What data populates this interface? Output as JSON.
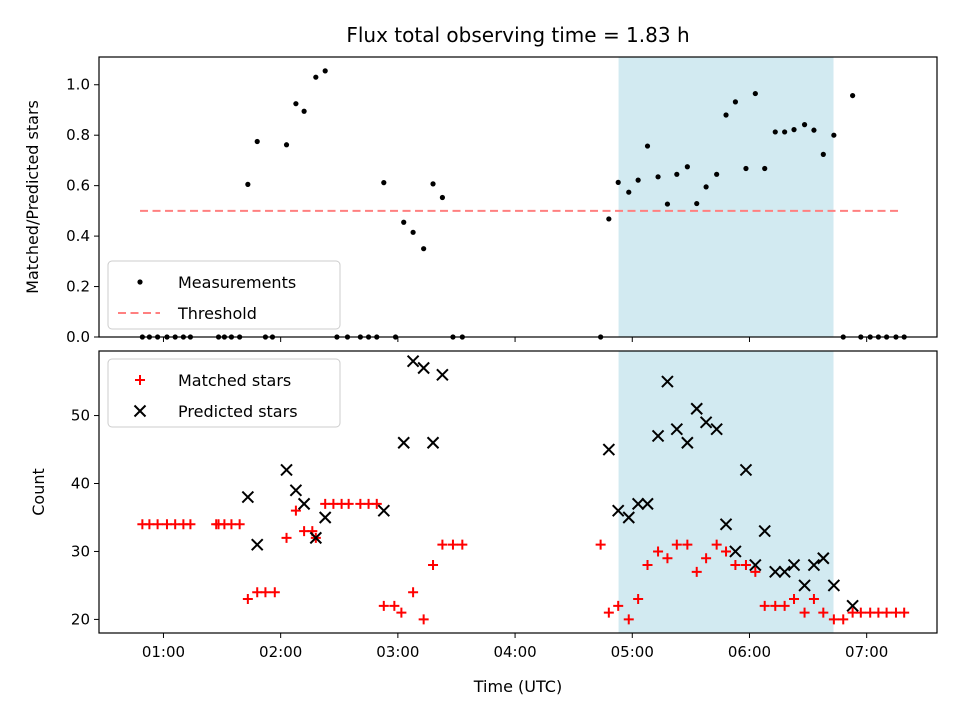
{
  "chart_data": {
    "title": "Flux total observing time = 1.83 h",
    "xlabel": "Time (UTC)",
    "x_tick_labels": [
      "01:00",
      "02:00",
      "03:00",
      "04:00",
      "05:00",
      "06:00",
      "07:00"
    ],
    "x_ticks_hours": [
      1,
      2,
      3,
      4,
      5,
      6,
      7
    ],
    "x_range_hours": [
      0.45,
      7.6
    ],
    "shaded_interval_hours": [
      4.883,
      6.717
    ],
    "shade_color": "#add8e6",
    "panels": [
      {
        "id": "ratio",
        "type": "scatter",
        "ylabel": "Matched/Predicted stars",
        "ylim": [
          0,
          1.11
        ],
        "y_ticks": [
          0.0,
          0.2,
          0.4,
          0.6,
          0.8,
          1.0
        ],
        "y_tick_labels": [
          "0.0",
          "0.2",
          "0.4",
          "0.6",
          "0.8",
          "1.0"
        ],
        "legend": {
          "placement": "lower-left",
          "entries": [
            "Measurements",
            "Threshold"
          ]
        },
        "series": [
          {
            "name": "Measurements",
            "marker": "dot",
            "color": "#000000",
            "points": [
              [
                0.82,
                0
              ],
              [
                0.88,
                0
              ],
              [
                0.95,
                0
              ],
              [
                1.03,
                0
              ],
              [
                1.1,
                0
              ],
              [
                1.17,
                0
              ],
              [
                1.23,
                0
              ],
              [
                1.47,
                0
              ],
              [
                1.52,
                0
              ],
              [
                1.58,
                0
              ],
              [
                1.65,
                0
              ],
              [
                1.72,
                0.605
              ],
              [
                1.8,
                0.775
              ],
              [
                1.87,
                0
              ],
              [
                1.93,
                0
              ],
              [
                2.05,
                0.762
              ],
              [
                2.13,
                0.925
              ],
              [
                2.2,
                0.895
              ],
              [
                2.3,
                1.03
              ],
              [
                2.38,
                1.055
              ],
              [
                2.48,
                0
              ],
              [
                2.57,
                0
              ],
              [
                2.68,
                0
              ],
              [
                2.75,
                0
              ],
              [
                2.82,
                0
              ],
              [
                2.88,
                0.612
              ],
              [
                2.98,
                0
              ],
              [
                3.05,
                0.455
              ],
              [
                3.13,
                0.415
              ],
              [
                3.22,
                0.35
              ],
              [
                3.3,
                0.607
              ],
              [
                3.38,
                0.553
              ],
              [
                3.47,
                0
              ],
              [
                3.55,
                0
              ],
              [
                4.73,
                0
              ],
              [
                4.8,
                0.468
              ],
              [
                4.88,
                0.613
              ],
              [
                4.97,
                0.574
              ],
              [
                5.05,
                0.622
              ],
              [
                5.13,
                0.757
              ],
              [
                5.22,
                0.635
              ],
              [
                5.3,
                0.527
              ],
              [
                5.38,
                0.645
              ],
              [
                5.47,
                0.675
              ],
              [
                5.55,
                0.529
              ],
              [
                5.63,
                0.595
              ],
              [
                5.72,
                0.645
              ],
              [
                5.8,
                0.88
              ],
              [
                5.88,
                0.932
              ],
              [
                5.97,
                0.668
              ],
              [
                6.05,
                0.965
              ],
              [
                6.13,
                0.668
              ],
              [
                6.22,
                0.813
              ],
              [
                6.3,
                0.813
              ],
              [
                6.38,
                0.822
              ],
              [
                6.47,
                0.842
              ],
              [
                6.55,
                0.82
              ],
              [
                6.63,
                0.724
              ],
              [
                6.72,
                0.8
              ],
              [
                6.8,
                0
              ],
              [
                6.88,
                0.957
              ],
              [
                6.95,
                0
              ],
              [
                7.03,
                0
              ],
              [
                7.1,
                0
              ],
              [
                7.17,
                0
              ],
              [
                7.25,
                0
              ],
              [
                7.32,
                0
              ]
            ]
          },
          {
            "name": "Threshold",
            "type": "line",
            "style": "dashed",
            "color": "#ff8080",
            "points": [
              [
                0.8,
                0.5
              ],
              [
                7.3,
                0.5
              ]
            ]
          }
        ]
      },
      {
        "id": "count",
        "type": "scatter",
        "ylabel": "Count",
        "ylim": [
          18,
          59.5
        ],
        "y_ticks": [
          20,
          30,
          40,
          50
        ],
        "y_tick_labels": [
          "20",
          "30",
          "40",
          "50"
        ],
        "legend": {
          "placement": "upper-left",
          "entries": [
            "Matched stars",
            "Predicted stars"
          ]
        },
        "series": [
          {
            "name": "Matched stars",
            "marker": "plus",
            "color": "#ff0000",
            "points": [
              [
                0.82,
                34
              ],
              [
                0.88,
                34
              ],
              [
                0.95,
                34
              ],
              [
                1.03,
                34
              ],
              [
                1.1,
                34
              ],
              [
                1.17,
                34
              ],
              [
                1.23,
                34
              ],
              [
                1.45,
                34
              ],
              [
                1.47,
                34
              ],
              [
                1.52,
                34
              ],
              [
                1.58,
                34
              ],
              [
                1.65,
                34
              ],
              [
                1.72,
                23
              ],
              [
                1.8,
                24
              ],
              [
                1.87,
                24
              ],
              [
                1.95,
                24
              ],
              [
                2.05,
                32
              ],
              [
                2.13,
                36
              ],
              [
                2.2,
                33
              ],
              [
                2.27,
                33
              ],
              [
                2.3,
                32
              ],
              [
                2.38,
                37
              ],
              [
                2.45,
                37
              ],
              [
                2.52,
                37
              ],
              [
                2.58,
                37
              ],
              [
                2.68,
                37
              ],
              [
                2.75,
                37
              ],
              [
                2.82,
                37
              ],
              [
                2.88,
                22
              ],
              [
                2.97,
                22
              ],
              [
                3.03,
                21
              ],
              [
                3.13,
                24
              ],
              [
                3.22,
                20
              ],
              [
                3.3,
                28
              ],
              [
                3.38,
                31
              ],
              [
                3.47,
                31
              ],
              [
                3.55,
                31
              ],
              [
                4.73,
                31
              ],
              [
                4.8,
                21
              ],
              [
                4.88,
                22
              ],
              [
                4.97,
                20
              ],
              [
                5.05,
                23
              ],
              [
                5.13,
                28
              ],
              [
                5.22,
                30
              ],
              [
                5.3,
                29
              ],
              [
                5.38,
                31
              ],
              [
                5.47,
                31
              ],
              [
                5.55,
                27
              ],
              [
                5.63,
                29
              ],
              [
                5.72,
                31
              ],
              [
                5.8,
                30
              ],
              [
                5.88,
                28
              ],
              [
                5.97,
                28
              ],
              [
                6.05,
                27
              ],
              [
                6.13,
                22
              ],
              [
                6.22,
                22
              ],
              [
                6.3,
                22
              ],
              [
                6.38,
                23
              ],
              [
                6.47,
                21
              ],
              [
                6.55,
                23
              ],
              [
                6.63,
                21
              ],
              [
                6.72,
                20
              ],
              [
                6.8,
                20
              ],
              [
                6.88,
                21
              ],
              [
                6.95,
                21
              ],
              [
                7.03,
                21
              ],
              [
                7.1,
                21
              ],
              [
                7.17,
                21
              ],
              [
                7.25,
                21
              ],
              [
                7.32,
                21
              ]
            ]
          },
          {
            "name": "Predicted stars",
            "marker": "x",
            "color": "#000000",
            "points": [
              [
                1.72,
                38
              ],
              [
                1.8,
                31
              ],
              [
                2.05,
                42
              ],
              [
                2.13,
                39
              ],
              [
                2.2,
                37
              ],
              [
                2.3,
                32
              ],
              [
                2.38,
                35
              ],
              [
                2.88,
                36
              ],
              [
                3.05,
                46
              ],
              [
                3.13,
                58
              ],
              [
                3.22,
                57
              ],
              [
                3.3,
                46
              ],
              [
                3.38,
                56
              ],
              [
                4.8,
                45
              ],
              [
                4.88,
                36
              ],
              [
                4.97,
                35
              ],
              [
                5.05,
                37
              ],
              [
                5.13,
                37
              ],
              [
                5.22,
                47
              ],
              [
                5.3,
                55
              ],
              [
                5.38,
                48
              ],
              [
                5.47,
                46
              ],
              [
                5.55,
                51
              ],
              [
                5.63,
                49
              ],
              [
                5.72,
                48
              ],
              [
                5.8,
                34
              ],
              [
                5.88,
                30
              ],
              [
                5.97,
                42
              ],
              [
                6.05,
                28
              ],
              [
                6.13,
                33
              ],
              [
                6.22,
                27
              ],
              [
                6.3,
                27
              ],
              [
                6.38,
                28
              ],
              [
                6.47,
                25
              ],
              [
                6.55,
                28
              ],
              [
                6.63,
                29
              ],
              [
                6.72,
                25
              ],
              [
                6.88,
                22
              ]
            ]
          }
        ]
      }
    ]
  }
}
